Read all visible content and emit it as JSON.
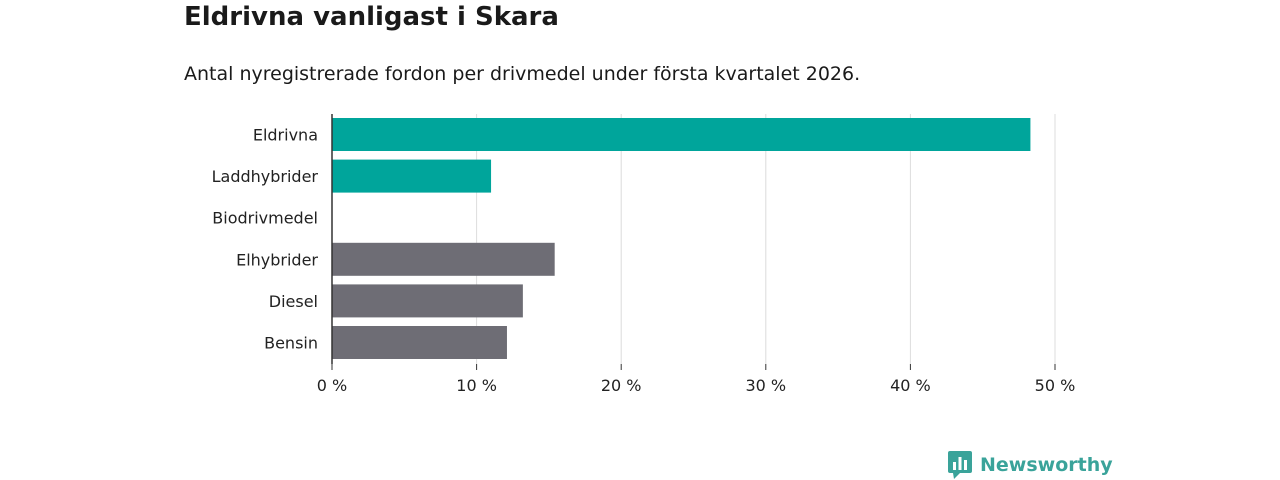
{
  "colors": {
    "highlight": "#00a59b",
    "neutral": "#6e6d75",
    "grid": "#dcdcdc",
    "axis": "#333333",
    "brand": "#3aa39a"
  },
  "logo": {
    "text": "Newsworthy",
    "icon": "newsworthy-chart-icon"
  },
  "chart_data": {
    "type": "bar",
    "orientation": "horizontal",
    "title": "Eldrivna vanligast i Skara",
    "subtitle": "Antal nyregistrerade fordon per drivmedel under första kvartalet 2026.",
    "categories": [
      "Eldrivna",
      "Laddhybrider",
      "Biodrivmedel",
      "Elhybrider",
      "Diesel",
      "Bensin"
    ],
    "values": [
      48.3,
      11.0,
      0,
      15.4,
      13.2,
      12.1
    ],
    "groups": [
      "highlight",
      "highlight",
      "highlight",
      "neutral",
      "neutral",
      "neutral"
    ],
    "xlim": [
      0,
      50
    ],
    "ticks": [
      0,
      10,
      20,
      30,
      40,
      50
    ],
    "tick_labels": [
      "0 %",
      "10 %",
      "20 %",
      "30 %",
      "40 %",
      "50 %"
    ],
    "xlabel": "",
    "ylabel": "",
    "grid": true
  }
}
